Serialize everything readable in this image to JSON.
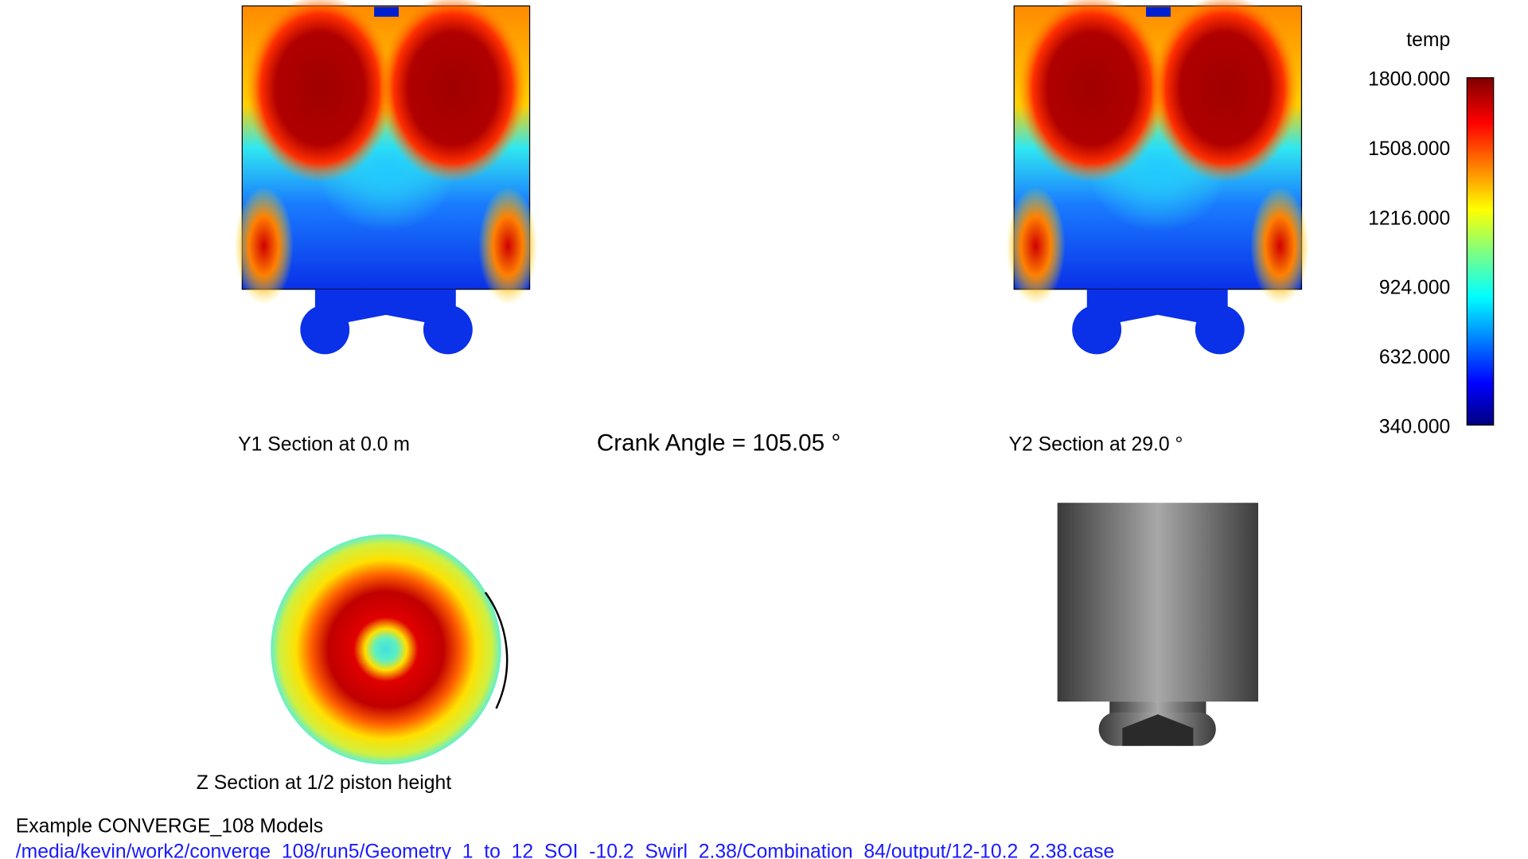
{
  "sections": {
    "y1": "Y1 Section at 0.0 m",
    "crank_angle": "Crank Angle = 105.05 °",
    "y2": "Y2 Section at 29.0 °",
    "z": "Z Section at 1/2 piston height"
  },
  "colorbar": {
    "title": "temp",
    "ticks": [
      "1800.000",
      "1508.000",
      "1216.000",
      "924.000",
      "632.000",
      "340.000"
    ]
  },
  "footer": {
    "title": "Example CONVERGE_108 Models",
    "path": "/media/kevin/work2/converge_108/run5/Geometry_1_to_12_SOI_-10.2_Swirl_2.38/Combination_84/output/12-10.2_2.38.case"
  }
}
